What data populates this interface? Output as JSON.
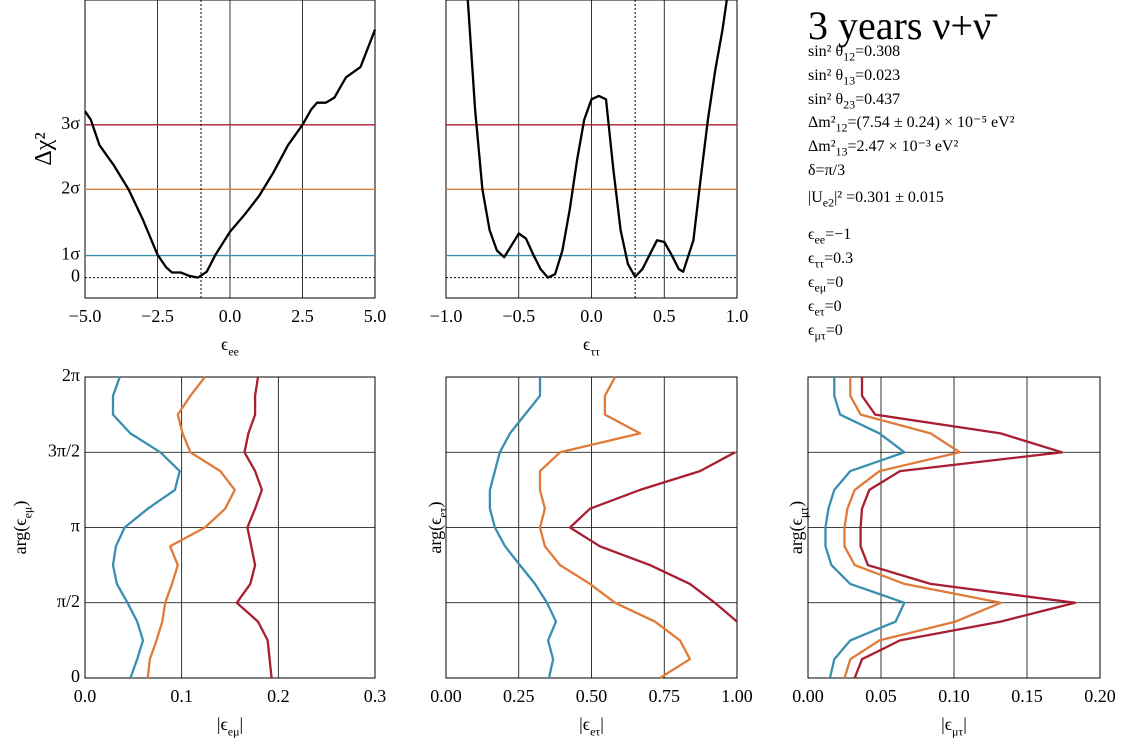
{
  "chart_data": [
    {
      "type": "line",
      "xlabel": [
        "ϵ",
        "ee"
      ],
      "ylabel": [
        "Δχ²"
      ],
      "xlim": [
        -5,
        5
      ],
      "ylim": [
        -1.2,
        16.35
      ],
      "xticks": [
        {
          "value": -5,
          "label": "−5.0"
        },
        {
          "value": -2.5,
          "label": "−2.5"
        },
        {
          "value": 0,
          "label": "0.0"
        },
        {
          "value": 2.5,
          "label": "2.5"
        },
        {
          "value": 5,
          "label": "5.0"
        }
      ],
      "yticks": [
        0,
        {
          "value": 1.3,
          "label": "1σ"
        },
        {
          "value": 5.2,
          "label": "2σ"
        },
        {
          "value": 9,
          "label": "3σ"
        }
      ],
      "grid": "x",
      "color": "#000000",
      "sigma_lines": [
        {
          "value": 1.3,
          "color": "#3a8fb0"
        },
        {
          "value": 5.2,
          "color": "#d9803d"
        },
        {
          "value": 9,
          "color": "#a81e32"
        }
      ],
      "reference": {
        "x": -1,
        "y": 0
      },
      "x": [
        -5,
        -4.8,
        -4.5,
        -4,
        -3.5,
        -3,
        -2.5,
        -2.2,
        -2,
        -1.7,
        -1.4,
        -1.1,
        -0.8,
        -0.5,
        0,
        0.5,
        1,
        1.5,
        2,
        2.5,
        2.8,
        3,
        3.3,
        3.6,
        4,
        4.5,
        5
      ],
      "values": [
        9.8,
        9.3,
        7.8,
        6.6,
        5.2,
        3.4,
        1.35,
        0.6,
        0.3,
        0.3,
        0.1,
        0,
        0.35,
        1.35,
        2.7,
        3.7,
        4.8,
        6.2,
        7.8,
        9,
        9.9,
        10.3,
        10.3,
        10.6,
        11.8,
        12.4,
        14.6
      ]
    },
    {
      "type": "line",
      "xlabel": [
        "ϵ",
        "ττ"
      ],
      "xlim": [
        -1,
        1
      ],
      "ylim": [
        -1.2,
        16.35
      ],
      "xticks": [
        {
          "value": -1,
          "label": "−1.0"
        },
        {
          "value": -0.5,
          "label": "−0.5"
        },
        {
          "value": 0,
          "label": "0.0"
        },
        0.5,
        {
          "value": 1,
          "label": "1.0"
        }
      ],
      "grid": "x",
      "color": "#000000",
      "sigma_lines": [
        {
          "value": 1.3,
          "color": "#3a8fb0"
        },
        {
          "value": 5.2,
          "color": "#d9803d"
        },
        {
          "value": 9,
          "color": "#a81e32"
        }
      ],
      "reference": {
        "x": 0.3,
        "y": 0
      },
      "x": [
        -0.85,
        -0.8,
        -0.75,
        -0.7,
        -0.65,
        -0.6,
        -0.55,
        -0.5,
        -0.45,
        -0.4,
        -0.35,
        -0.3,
        -0.25,
        -0.2,
        -0.15,
        -0.1,
        -0.05,
        0,
        0.05,
        0.1,
        0.15,
        0.2,
        0.25,
        0.3,
        0.35,
        0.4,
        0.45,
        0.5,
        0.55,
        0.6,
        0.63,
        0.7,
        0.75,
        0.8,
        0.85,
        0.9,
        0.93
      ],
      "values": [
        16.35,
        9.9,
        5.2,
        2.8,
        1.6,
        1.2,
        1.9,
        2.6,
        2.3,
        1.35,
        0.5,
        0,
        0.2,
        1.6,
        4,
        6.9,
        9.3,
        10.5,
        10.7,
        10.5,
        6.4,
        2.8,
        0.8,
        0.05,
        0.5,
        1.35,
        2.2,
        2.1,
        1.35,
        0.5,
        0.35,
        2.2,
        5.8,
        9.3,
        12.2,
        14.6,
        16.35
      ]
    },
    {
      "type": "contour",
      "xlabel": [
        "|ϵ",
        "eμ",
        "|"
      ],
      "ylabel": [
        "arg(ϵ",
        "eμ",
        ")"
      ],
      "xlim": [
        0,
        0.3
      ],
      "ylim": [
        0,
        6.2832
      ],
      "xticks": [
        {
          "value": 0,
          "label": "0.0"
        },
        0.1,
        0.2,
        0.3
      ],
      "yticks": [
        0,
        {
          "value": 1.5708,
          "label": "π/2"
        },
        {
          "value": 3.1416,
          "label": "π"
        },
        {
          "value": 4.7124,
          "label": "3π/2"
        },
        {
          "value": 6.2832,
          "label": "2π"
        }
      ],
      "grid": "both",
      "y": [
        0,
        0.3927,
        0.7854,
        1.1781,
        1.5708,
        1.9635,
        2.3562,
        2.7489,
        3.1416,
        3.5343,
        3.927,
        4.3197,
        4.7124,
        5.1051,
        5.4978,
        5.8905,
        6.2832
      ],
      "series": [
        {
          "color": "#3a8fb0",
          "values": [
            0.047,
            0.054,
            0.06,
            0.054,
            0.044,
            0.033,
            0.029,
            0.032,
            0.041,
            0.065,
            0.093,
            0.098,
            0.078,
            0.047,
            0.029,
            0.029,
            0.036
          ]
        },
        {
          "color": "#e07b39",
          "values": [
            0.065,
            0.067,
            0.074,
            0.08,
            0.083,
            0.09,
            0.096,
            0.088,
            0.124,
            0.145,
            0.155,
            0.14,
            0.109,
            0.101,
            0.096,
            0.109,
            0.124
          ]
        },
        {
          "color": "#a81e32",
          "values": [
            0.193,
            0.191,
            0.189,
            0.179,
            0.157,
            0.171,
            0.176,
            0.172,
            0.168,
            0.176,
            0.183,
            0.176,
            0.165,
            0.169,
            0.176,
            0.176,
            0.179
          ]
        }
      ]
    },
    {
      "type": "contour",
      "xlabel": [
        "|ϵ",
        "eτ",
        "|"
      ],
      "ylabel": [
        "arg(ϵ",
        "eτ",
        ")"
      ],
      "xlim": [
        0,
        1
      ],
      "ylim": [
        0,
        6.2832
      ],
      "xticks": [
        {
          "value": 0,
          "label": "0.00"
        },
        0.25,
        {
          "value": 0.5,
          "label": "0.50"
        },
        0.75,
        {
          "value": 1,
          "label": "1.00"
        }
      ],
      "yticks": [
        0,
        1.5708,
        3.1416,
        4.7124,
        6.2832
      ],
      "ytick_labels": false,
      "grid": "both",
      "y": [
        0,
        0.3927,
        0.7854,
        1.1781,
        1.5708,
        1.9635,
        2.3562,
        2.7489,
        3.1416,
        3.5343,
        3.927,
        4.3197,
        4.7124,
        5.1051,
        5.4978,
        5.8905,
        6.2832
      ],
      "series": [
        {
          "color": "#3a8fb0",
          "values": [
            0.354,
            0.368,
            0.351,
            0.378,
            0.347,
            0.306,
            0.254,
            0.203,
            0.168,
            0.151,
            0.151,
            0.168,
            0.185,
            0.22,
            0.271,
            0.323,
            0.323
          ]
        },
        {
          "color": "#e07b39",
          "values": [
            0.735,
            0.838,
            0.804,
            0.718,
            0.581,
            0.495,
            0.392,
            0.34,
            0.323,
            0.34,
            0.323,
            0.323,
            0.392,
            0.667,
            0.546,
            0.546,
            0.581
          ]
        },
        {
          "color": "#a81e32",
          "values": [
            null,
            null,
            null,
            1.0,
            0.924,
            0.838,
            0.701,
            0.529,
            0.426,
            0.495,
            0.667,
            0.873,
            0.993,
            null,
            null,
            null,
            null
          ]
        }
      ]
    },
    {
      "type": "contour",
      "xlabel": [
        "|ϵ",
        "μτ",
        "|"
      ],
      "ylabel": [
        "arg(ϵ",
        "μτ",
        ")"
      ],
      "xlim": [
        0,
        0.2
      ],
      "ylim": [
        0,
        6.2832
      ],
      "xticks": [
        {
          "value": 0,
          "label": "0.00"
        },
        0.05,
        {
          "value": 0.1,
          "label": "0.10"
        },
        0.15,
        {
          "value": 0.2,
          "label": "0.20"
        }
      ],
      "yticks": [
        0,
        1.5708,
        3.1416,
        4.7124,
        6.2832
      ],
      "ytick_labels": false,
      "grid": "both",
      "y": [
        0,
        0.3927,
        0.7854,
        1.1781,
        1.5708,
        1.9635,
        2.3562,
        2.7489,
        3.1416,
        3.5343,
        3.927,
        4.3197,
        4.7124,
        5.1051,
        5.4978,
        5.8905,
        6.2832
      ],
      "series": [
        {
          "color": "#3a8fb0",
          "values": [
            0.015,
            0.018,
            0.029,
            0.06,
            0.066,
            0.029,
            0.016,
            0.012,
            0.012,
            0.014,
            0.018,
            0.029,
            0.066,
            0.049,
            0.022,
            0.018,
            0.018
          ]
        },
        {
          "color": "#e07b39",
          "values": [
            0.025,
            0.029,
            0.049,
            0.101,
            0.132,
            0.066,
            0.032,
            0.025,
            0.025,
            0.027,
            0.032,
            0.049,
            0.104,
            0.084,
            0.036,
            0.029,
            0.029
          ]
        },
        {
          "color": "#a81e32",
          "values": [
            0.032,
            0.037,
            0.063,
            0.132,
            0.183,
            0.084,
            0.041,
            0.036,
            0.036,
            0.037,
            0.042,
            0.063,
            0.174,
            0.132,
            0.046,
            0.037,
            0.037
          ]
        }
      ]
    }
  ],
  "info": {
    "title": "3 years ν+ν̄",
    "lines": [
      [
        "sin² θ",
        "12",
        "=0.308"
      ],
      [
        "sin² θ",
        "13",
        "=0.023"
      ],
      [
        "sin² θ",
        "23",
        "=0.437"
      ],
      [
        "Δm²",
        "12",
        "=(7.54 ± 0.24) × 10⁻⁵  eV²"
      ],
      [
        "Δm²",
        "13",
        "=2.47 × 10⁻³  eV²"
      ],
      [
        "δ=π/3"
      ],
      [
        "|U",
        "e2",
        "|²  =0.301 ± 0.015"
      ],
      [
        "ϵ",
        "ee",
        "=−1"
      ],
      [
        "ϵ",
        "ττ",
        "=0.3"
      ],
      [
        "ϵ",
        "eμ",
        "=0"
      ],
      [
        "ϵ",
        "eτ",
        "=0"
      ],
      [
        "ϵ",
        "μτ",
        "=0"
      ]
    ]
  }
}
